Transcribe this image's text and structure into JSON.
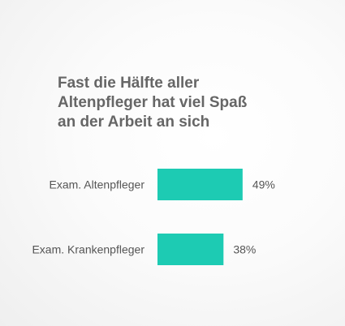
{
  "chart_data": {
    "type": "bar",
    "orientation": "horizontal",
    "title_lines": [
      "Fast die Hälfte aller",
      "Altenpfleger hat viel Spaß",
      "an der Arbeit an sich"
    ],
    "categories": [
      "Exam. Altenpfleger",
      "Exam. Krankenpfleger"
    ],
    "values": [
      49,
      38
    ],
    "value_labels": [
      "49%",
      "38%"
    ],
    "unit": "%",
    "xlim": [
      0,
      100
    ],
    "grid": false,
    "legend": "none",
    "bar_color": "#1dcbb3"
  }
}
